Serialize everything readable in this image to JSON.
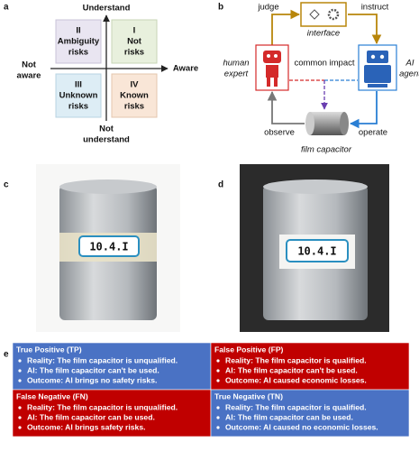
{
  "panel_a": {
    "label": "a",
    "top": "Understand",
    "bottom": [
      "Not",
      "understand"
    ],
    "right": "Aware",
    "left": [
      "Not",
      "aware"
    ],
    "quadrants": [
      {
        "numeral": "II",
        "text": [
          "Ambiguity",
          "risks"
        ]
      },
      {
        "numeral": "I",
        "text": [
          "Not",
          "risks"
        ]
      },
      {
        "numeral": "III",
        "text": [
          "Unknown",
          "risks"
        ]
      },
      {
        "numeral": "IV",
        "text": [
          "Known",
          "risks"
        ]
      }
    ]
  },
  "panel_b": {
    "label": "b",
    "judge": "judge",
    "instruct": "instruct",
    "interface": "interface",
    "human": [
      "human",
      "expert"
    ],
    "ai": [
      "AI",
      "agent"
    ],
    "impact": "common impact",
    "observe": "observe",
    "operate": "operate",
    "capacitor": "film capacitor"
  },
  "panel_c": {
    "label": "c",
    "tag": "10.4.I"
  },
  "panel_d": {
    "label": "d",
    "tag": "10.4.I"
  },
  "panel_e": {
    "label": "e",
    "cells": [
      {
        "title": "True Positive (TP)",
        "bullets": [
          "Reality: The film capacitor is unqualified.",
          "AI: The film capacitor can't be used.",
          "Outcome: AI brings no safety risks."
        ]
      },
      {
        "title": "False Positive (FP)",
        "bullets": [
          "Reality: The film capacitor is qualified.",
          "AI: The film capacitor can't be used.",
          "Outcome: AI caused economic losses."
        ]
      },
      {
        "title": "False Negative (FN)",
        "bullets": [
          "Reality: The film capacitor is unqualified.",
          "AI: The film capacitor can be used.",
          "Outcome: AI brings safety risks."
        ]
      },
      {
        "title": "True Negative (TN)",
        "bullets": [
          "Reality: The film capacitor is qualified.",
          "AI: The film capacitor can be used.",
          "Outcome:  AI caused no economic losses."
        ]
      }
    ]
  }
}
